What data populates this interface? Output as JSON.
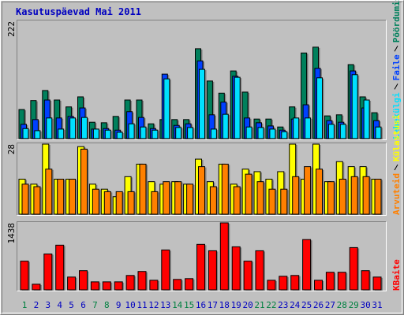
{
  "title": "Kasutuspäevad Mai 2011",
  "chart_data": [
    {
      "type": "bar",
      "ylim": [
        0,
        222
      ],
      "yticks": [
        222
      ],
      "series": [
        {
          "name": "Pöördumisi",
          "color": "#00805c",
          "values": [
            55,
            72,
            91,
            73,
            60,
            79,
            31,
            30,
            42,
            73,
            73,
            28,
            36,
            36,
            36,
            170,
            109,
            86,
            128,
            88,
            37,
            37,
            22,
            60,
            162,
            173,
            43,
            45,
            140,
            79,
            49
          ]
        },
        {
          "name": "Faile",
          "color": "#0040ff",
          "values": [
            27,
            36,
            73,
            39,
            42,
            58,
            18,
            19,
            16,
            51,
            40,
            19,
            122,
            25,
            28,
            147,
            45,
            69,
            118,
            39,
            30,
            24,
            16,
            37,
            64,
            133,
            34,
            31,
            128,
            58,
            34
          ]
        },
        {
          "name": "Lehekülgi",
          "color": "#00e0ff",
          "values": [
            19,
            15,
            39,
            18,
            39,
            40,
            18,
            16,
            12,
            28,
            22,
            16,
            113,
            21,
            21,
            131,
            18,
            46,
            116,
            22,
            21,
            18,
            13,
            39,
            39,
            115,
            27,
            27,
            121,
            73,
            22
          ]
        }
      ]
    },
    {
      "type": "bar",
      "ylim": [
        0,
        28
      ],
      "yticks": [
        28
      ],
      "series": [
        {
          "name": "Külastusi",
          "color": "#ffff00",
          "values": [
            14,
            12,
            28,
            14,
            14,
            27,
            12,
            10,
            7,
            15,
            20,
            13,
            12,
            13,
            12,
            22,
            13,
            20,
            12,
            18,
            17,
            14,
            17,
            28,
            14,
            28,
            13,
            21,
            19,
            19,
            14
          ]
        },
        {
          "name": "Arvuteid",
          "color": "#ff8000",
          "values": [
            12,
            11,
            18,
            14,
            14,
            26,
            10,
            9,
            9,
            9,
            20,
            9,
            13,
            13,
            12,
            19,
            11,
            20,
            11,
            16,
            13,
            10,
            10,
            15,
            19,
            18,
            13,
            14,
            15,
            15,
            14
          ]
        }
      ]
    },
    {
      "type": "bar",
      "ylim": [
        0,
        1438
      ],
      "yticks": [
        1438
      ],
      "categories": [
        "1",
        "2",
        "3",
        "4",
        "5",
        "6",
        "7",
        "8",
        "9",
        "10",
        "11",
        "12",
        "13",
        "14",
        "15",
        "16",
        "17",
        "18",
        "19",
        "20",
        "21",
        "22",
        "23",
        "24",
        "25",
        "26",
        "27",
        "28",
        "29",
        "30",
        "31"
      ],
      "category_colors": [
        "#008040",
        "#0000c0",
        "#0000c0",
        "#0000c0",
        "#0000c0",
        "#0000c0",
        "#008040",
        "#008040",
        "#0000c0",
        "#0000c0",
        "#0000c0",
        "#0000c0",
        "#0000c0",
        "#008040",
        "#008040",
        "#0000c0",
        "#0000c0",
        "#0000c0",
        "#0000c0",
        "#0000c0",
        "#008040",
        "#008040",
        "#0000c0",
        "#0000c0",
        "#0000c0",
        "#0000c0",
        "#0000c0",
        "#008040",
        "#008040",
        "#0000c0",
        "#0000c0"
      ],
      "series": [
        {
          "name": "KBaite",
          "color": "#ff0000",
          "values": [
            616,
            120,
            770,
            959,
            274,
            411,
            171,
            171,
            171,
            308,
            394,
            205,
            856,
            223,
            240,
            976,
            839,
            1438,
            924,
            616,
            839,
            205,
            291,
            308,
            1079,
            205,
            377,
            377,
            907,
            411,
            274
          ]
        }
      ]
    }
  ]
}
